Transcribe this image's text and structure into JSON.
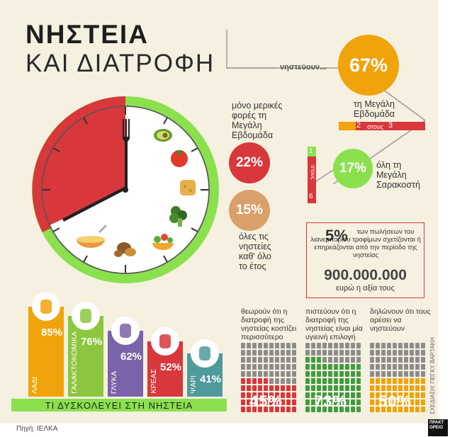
{
  "title": {
    "line1": "ΝΗΣΤΕΙΑ",
    "line2": "ΚΑΙ ΔΙΑΤΡΟΦΗ"
  },
  "fasting": {
    "prefix": "νηστεύουν...",
    "top": {
      "value": "67%",
      "label": "τη Μεγάλη Εβδομάδα",
      "ratio": {
        "a": "2",
        "mid": "στους",
        "b": "3"
      }
    },
    "side": {
      "value": "17%",
      "label": "όλη τη Μεγάλη Σαρακοστή",
      "ratio": {
        "a": "1",
        "mid": "στους",
        "b": "6"
      }
    },
    "some": {
      "value": "22%",
      "label": "μόνο μερικές φορές τη Μεγάλη Εβδομάδα"
    },
    "all": {
      "value": "15%",
      "label": "όλες τις νηστείες καθ' όλο το έτος"
    }
  },
  "sales": {
    "pct": "5%",
    "text": "των πωλήσεων του λιανεμπορίου τροφίμων σχετίζονται ή επηρεάζονται από την περίοδο της νηστείας",
    "amount": "900.000.000",
    "amount_label": "ευρώ η αξία τους"
  },
  "difficulty": {
    "title": "ΤΙ ΔΥΣΚΟΛΕΥΕΙ ΣΤΗ ΝΗΣΤΕΙΑ",
    "items": [
      {
        "label": "ΛΑΔΙ",
        "value": "85%",
        "pct": 85,
        "color": "#f0a30a",
        "icon": "olive-oil-icon"
      },
      {
        "label": "ΓΑΛΑΚΤΟΚΟΜΙΚΑ",
        "value": "76%",
        "pct": 76,
        "color": "#8dc63f",
        "icon": "cheese-icon"
      },
      {
        "label": "ΓΛΥΚΑ",
        "value": "62%",
        "pct": 62,
        "color": "#7a63a8",
        "icon": "muffin-icon"
      },
      {
        "label": "ΚΡΕΑΣ",
        "value": "52%",
        "pct": 52,
        "color": "#d8373c",
        "icon": "chicken-icon"
      },
      {
        "label": "ΨΑΡΙ",
        "value": "41%",
        "pct": 41,
        "color": "#4f9a9a",
        "icon": "fish-icon"
      }
    ]
  },
  "opinions": [
    {
      "text": "θεωρούν ότι η διατροφή της νηστείας κοστίζει περισσότερο",
      "value": "45%",
      "pct": 45,
      "color": "#d8373c"
    },
    {
      "text": "πιστεύουν ότι η διατροφή της νηστείας είναι μία υγιεινή επιλογή",
      "value": "73%",
      "pct": 73,
      "color": "#3f9c3f"
    },
    {
      "text": "δηλώνουν ότι τους αρέσει να νηστεύουν",
      "value": "50%",
      "pct": 50,
      "color": "#f0a30a"
    }
  ],
  "credit": "ΣΧΕΔΙΑΣΗ: ΠΕΓΚΥ ΒΑΡΤΑΚΗ",
  "source": "Πηγή: ΙΕΛΚΑ",
  "logo": "ΠΡΑΚΤΟΡΕΙΟ",
  "colors": {
    "red": "#d8373c",
    "green": "#8be04e",
    "orange": "#f0a30a",
    "tan": "#d9a06a",
    "bg": "#f6f0e0"
  }
}
